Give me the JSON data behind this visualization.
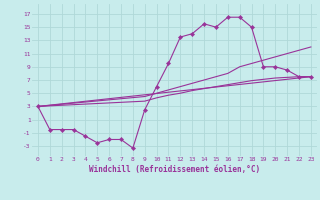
{
  "background_color": "#c8ecec",
  "grid_color": "#b0d8d8",
  "line_color": "#993399",
  "xlabel": "Windchill (Refroidissement éolien,°C)",
  "ylabel_ticks": [
    -3,
    -1,
    1,
    3,
    5,
    7,
    9,
    11,
    13,
    15,
    17
  ],
  "xtick_labels": [
    "0",
    "1",
    "2",
    "3",
    "4",
    "5",
    "6",
    "7",
    "8",
    "9",
    "10",
    "11",
    "12",
    "13",
    "14",
    "15",
    "16",
    "17",
    "18",
    "19",
    "20",
    "21",
    "22",
    "23"
  ],
  "xlim": [
    -0.5,
    23.5
  ],
  "ylim": [
    -4.5,
    18.5
  ],
  "line1_x": [
    0,
    1,
    2,
    3,
    4,
    5,
    6,
    7,
    8,
    9,
    10,
    11,
    12,
    13,
    14,
    15,
    16,
    17,
    18,
    19,
    20,
    21,
    22,
    23
  ],
  "line1_y": [
    3,
    -0.5,
    -0.5,
    -0.5,
    -1.5,
    -2.5,
    -2.0,
    -2.0,
    -3.3,
    2.5,
    6.0,
    9.5,
    13.5,
    14.0,
    15.5,
    15.0,
    16.5,
    16.5,
    15.0,
    9.0,
    9.0,
    8.5,
    7.5,
    7.5
  ],
  "line2_x": [
    0,
    9,
    10,
    11,
    12,
    13,
    14,
    15,
    16,
    17,
    18,
    23
  ],
  "line2_y": [
    3,
    4.5,
    5.0,
    5.5,
    6.0,
    6.5,
    7.0,
    7.5,
    8.0,
    9.0,
    9.5,
    12.0
  ],
  "line3_x": [
    0,
    9,
    10,
    11,
    12,
    13,
    14,
    15,
    16,
    17,
    18,
    19,
    20,
    21,
    22,
    23
  ],
  "line3_y": [
    3,
    3.8,
    4.3,
    4.7,
    5.0,
    5.4,
    5.7,
    6.0,
    6.3,
    6.6,
    6.9,
    7.1,
    7.3,
    7.4,
    7.5,
    7.5
  ],
  "line4_x": [
    0,
    23
  ],
  "line4_y": [
    3,
    7.5
  ]
}
